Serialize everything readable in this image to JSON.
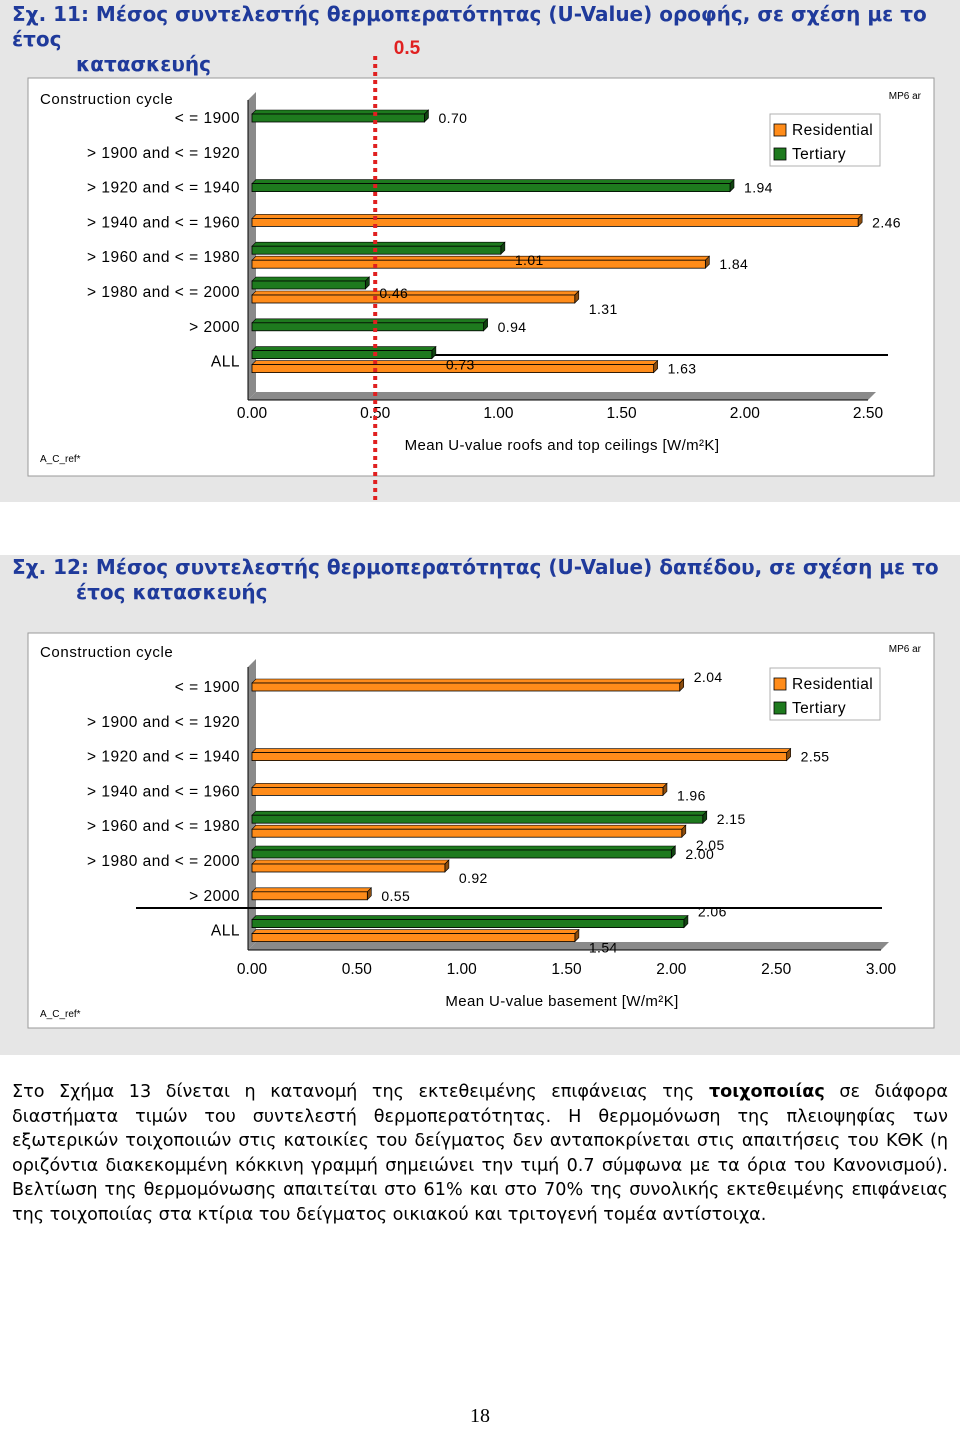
{
  "figures": [
    {
      "title_num": "Σχ. 11: Μέσος συντελεστής θερμοπερατότητας (U-Value) οροφής, σε σχέση με το έτος",
      "title_cont": "κατασκευής",
      "limit_label": "0.5"
    },
    {
      "title_num": "Σχ. 12: Μέσος συντελεστής θερμοπερατότητας (U-Value) δαπέδου, σε σχέση με το",
      "title_cont": "έτος κατασκευής"
    }
  ],
  "chart_data": [
    {
      "type": "bar",
      "orientation": "horizontal",
      "title": "Σχ. 11: Μέσος συντελεστής θερμοπερατότητας (U-Value) οροφής, σε σχέση με το έτος κατασκευής",
      "category_axis_title": "Construction cycle",
      "corner_label": "MP6 ar",
      "footnote_label": "A_C_ref*",
      "xlabel": "Mean U-value roofs and top ceilings [W/m²K]",
      "xlim": [
        0,
        2.5
      ],
      "xticks": [
        "0.00",
        "0.50",
        "1.00",
        "1.50",
        "2.00",
        "2.50"
      ],
      "grid": false,
      "legend_position": "top-right",
      "categories": [
        "<=1900",
        ">1900 and <=1920",
        ">1920 and <=1940",
        ">1940 and <=1960",
        ">1960 and <=1980",
        ">1980 and <=2000",
        ">2000",
        "ALL"
      ],
      "series": [
        {
          "name": "Residential",
          "color": "#ff8c1a",
          "values": [
            null,
            null,
            null,
            2.46,
            1.84,
            1.31,
            null,
            1.63
          ],
          "labels": [
            "",
            "",
            "",
            "2.46",
            "1.84",
            "1.31",
            "",
            "1.63"
          ]
        },
        {
          "name": "Tertiary",
          "color": "#1e7a1e",
          "values": [
            0.7,
            null,
            1.94,
            null,
            1.01,
            0.46,
            0.94,
            0.73
          ],
          "labels": [
            "0.70",
            "",
            "1.94",
            "",
            "1.01",
            "0.46",
            "0.94",
            "0.73"
          ]
        }
      ],
      "reference_line": {
        "value": 0.5,
        "color": "#e02020",
        "style": "dotted"
      }
    },
    {
      "type": "bar",
      "orientation": "horizontal",
      "title": "Σχ. 12: Μέσος συντελεστής θερμοπερατότητας (U-Value) δαπέδου, σε σχέση με το έτος κατασκευής",
      "category_axis_title": "Construction cycle",
      "corner_label": "MP6 ar",
      "footnote_label": "A_C_ref*",
      "xlabel": "Mean U-value basement [W/m²K]",
      "xlim": [
        0,
        3.0
      ],
      "xticks": [
        "0.00",
        "0.50",
        "1.00",
        "1.50",
        "2.00",
        "2.50",
        "3.00"
      ],
      "grid": false,
      "legend_position": "top-right",
      "categories": [
        "<=1900",
        ">1900 and <=1920",
        ">1920 and <=1940",
        ">1940 and <=1960",
        ">1960 and <=1980",
        ">1980 and <=2000",
        ">2000",
        "ALL"
      ],
      "series": [
        {
          "name": "Residential",
          "color": "#ff8c1a",
          "values": [
            2.04,
            null,
            2.55,
            1.96,
            2.05,
            0.92,
            0.55,
            1.54
          ],
          "labels": [
            "2.04",
            "",
            "2.55",
            "1.96",
            "2.05",
            "0.92",
            "0.55",
            "1.54"
          ]
        },
        {
          "name": "Tertiary",
          "color": "#1e7a1e",
          "values": [
            null,
            null,
            null,
            null,
            2.15,
            2.0,
            null,
            2.06
          ],
          "labels": [
            "",
            "",
            "",
            "",
            "2.15",
            "2.00",
            "",
            "2.06"
          ]
        }
      ]
    }
  ],
  "paragraph": {
    "before_bold": "Στο Σχήμα 13 δίνεται η κατανομή της εκτεθειμένης επιφάνειας της ",
    "bold": "τοιχοποιίας",
    "after_bold": " σε διάφορα διαστήματα τιμών του συντελεστή θερμοπερατότητας. Η θερμομόνωση της πλειοψηφίας των εξωτερικών τοιχοποιιών στις κατοικίες του δείγματος δεν ανταποκρίνεται στις απαιτήσεις του ΚΘΚ (η οριζόντια διακεκομμένη κόκκινη γραμμή σημειώνει την τιμή 0.7 σύμφωνα με τα όρια του Κανονισμού). Βελτίωση της θερμομόνωσης απαιτείται στο 61% και στο 70% της συνολικής εκτεθειμένης επιφάνειας της τοιχοποιίας στα κτίρια του δείγματος οικιακού και τριτογενή τομέα αντίστοιχα."
  },
  "page_number": "18"
}
